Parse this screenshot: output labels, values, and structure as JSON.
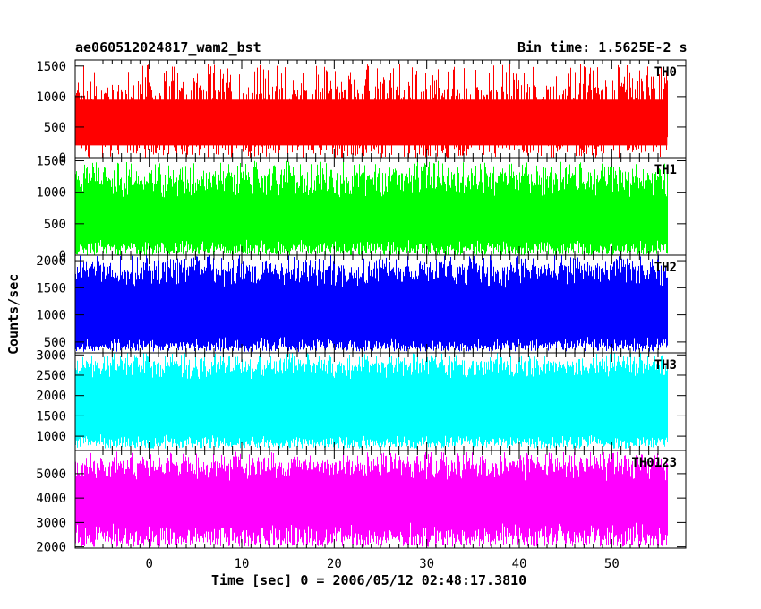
{
  "header": {
    "left": "ae060512024817_wam2_bst",
    "right": "Bin time: 1.5625E-2 s"
  },
  "chart_data": {
    "type": "line",
    "xlabel": "Time [sec] 0 = 2006/05/12 02:48:17.3810",
    "ylabel": "Counts/sec",
    "x_range": [
      -8.0,
      58.0
    ],
    "data_x_range": [
      -8.0,
      56.0
    ],
    "x_ticks": [
      0,
      10,
      20,
      30,
      40,
      50
    ],
    "bin_time_s": 0.015625,
    "panels": [
      {
        "name": "TH0",
        "color": "#ff0000",
        "ylim": [
          0,
          1600
        ],
        "y_ticks": [
          0,
          500,
          1000,
          1500
        ],
        "y_tick_labels": [
          "0",
          "500",
          "1000",
          "1500"
        ],
        "envelope_low": [
          0,
          900
        ],
        "envelope_high": [
          300,
          1550
        ],
        "core": [
          200,
          950
        ]
      },
      {
        "name": "TH1",
        "color": "#00ff00",
        "ylim": [
          0,
          1550
        ],
        "y_ticks": [
          0,
          500,
          1000,
          1500
        ],
        "y_tick_labels": [
          "0",
          "500",
          "1000",
          "1500"
        ],
        "envelope_low": [
          0,
          250
        ],
        "envelope_high": [
          900,
          1500
        ],
        "core": [
          250,
          900
        ]
      },
      {
        "name": "TH2",
        "color": "#0000ff",
        "ylim": [
          300,
          2100
        ],
        "y_ticks": [
          500,
          1000,
          1500,
          2000
        ],
        "y_tick_labels": [
          "500",
          "1000",
          "1500",
          "2000"
        ],
        "envelope_low": [
          320,
          600
        ],
        "envelope_high": [
          1500,
          2100
        ],
        "core": [
          600,
          1500
        ]
      },
      {
        "name": "TH3",
        "color": "#00ffff",
        "ylim": [
          650,
          3050
        ],
        "y_ticks": [
          1000,
          1500,
          2000,
          2500,
          3000
        ],
        "y_tick_labels": [
          "1000",
          "1500",
          "2000",
          "2500",
          "3000"
        ],
        "envelope_low": [
          700,
          1050
        ],
        "envelope_high": [
          2400,
          3050
        ],
        "core": [
          1050,
          2400
        ]
      },
      {
        "name": "TH0123",
        "color": "#ff00ff",
        "ylim": [
          1950,
          5950
        ],
        "y_ticks": [
          2000,
          3000,
          4000,
          5000
        ],
        "y_tick_labels": [
          "2000",
          "3000",
          "4000",
          "5000"
        ],
        "envelope_low": [
          2000,
          3000
        ],
        "envelope_high": [
          4700,
          5900
        ],
        "core": [
          3000,
          4700
        ]
      }
    ]
  }
}
